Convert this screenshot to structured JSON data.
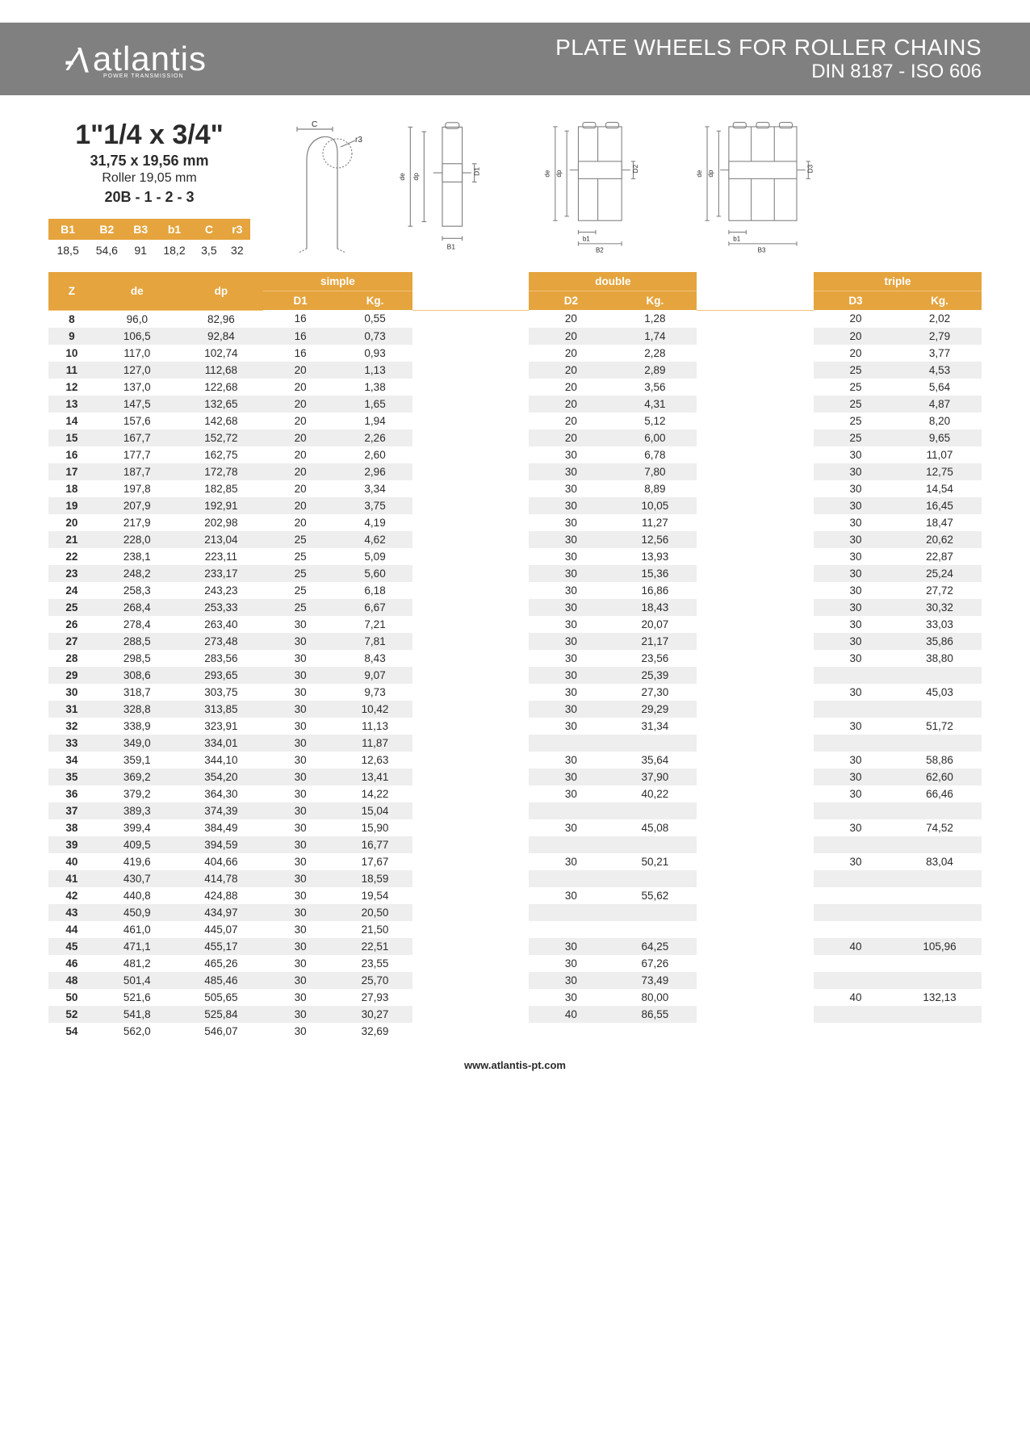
{
  "brand": {
    "name": "atlantis",
    "tagline": "POWER TRANSMISSION"
  },
  "header": {
    "title1": "PLATE WHEELS FOR ROLLER CHAINS",
    "title2": "DIN 8187 - ISO 606"
  },
  "spec": {
    "main": "1\"1/4 x 3/4\"",
    "mm": "31,75 x 19,56 mm",
    "roller": "Roller 19,05 mm",
    "series": "20B - 1 - 2 - 3"
  },
  "smallTable": {
    "headers": [
      "B1",
      "B2",
      "B3",
      "b1",
      "C",
      "r3"
    ],
    "values": [
      "18,5",
      "54,6",
      "91",
      "18,2",
      "3,5",
      "32"
    ]
  },
  "mainTable": {
    "groupLabels": {
      "simple": "simple",
      "double": "double",
      "triple": "triple"
    },
    "subHeaders": {
      "Z": "Z",
      "de": "de",
      "dp": "dp",
      "D1": "D1",
      "D2": "D2",
      "D3": "D3",
      "Kg": "Kg."
    },
    "rows": [
      {
        "Z": "8",
        "de": "96,0",
        "dp": "82,96",
        "D1": "16",
        "K1": "0,55",
        "D2": "20",
        "K2": "1,28",
        "D3": "20",
        "K3": "2,02"
      },
      {
        "Z": "9",
        "de": "106,5",
        "dp": "92,84",
        "D1": "16",
        "K1": "0,73",
        "D2": "20",
        "K2": "1,74",
        "D3": "20",
        "K3": "2,79"
      },
      {
        "Z": "10",
        "de": "117,0",
        "dp": "102,74",
        "D1": "16",
        "K1": "0,93",
        "D2": "20",
        "K2": "2,28",
        "D3": "20",
        "K3": "3,77"
      },
      {
        "Z": "11",
        "de": "127,0",
        "dp": "112,68",
        "D1": "20",
        "K1": "1,13",
        "D2": "20",
        "K2": "2,89",
        "D3": "25",
        "K3": "4,53"
      },
      {
        "Z": "12",
        "de": "137,0",
        "dp": "122,68",
        "D1": "20",
        "K1": "1,38",
        "D2": "20",
        "K2": "3,56",
        "D3": "25",
        "K3": "5,64"
      },
      {
        "Z": "13",
        "de": "147,5",
        "dp": "132,65",
        "D1": "20",
        "K1": "1,65",
        "D2": "20",
        "K2": "4,31",
        "D3": "25",
        "K3": "4,87"
      },
      {
        "Z": "14",
        "de": "157,6",
        "dp": "142,68",
        "D1": "20",
        "K1": "1,94",
        "D2": "20",
        "K2": "5,12",
        "D3": "25",
        "K3": "8,20"
      },
      {
        "Z": "15",
        "de": "167,7",
        "dp": "152,72",
        "D1": "20",
        "K1": "2,26",
        "D2": "20",
        "K2": "6,00",
        "D3": "25",
        "K3": "9,65"
      },
      {
        "Z": "16",
        "de": "177,7",
        "dp": "162,75",
        "D1": "20",
        "K1": "2,60",
        "D2": "30",
        "K2": "6,78",
        "D3": "30",
        "K3": "11,07"
      },
      {
        "Z": "17",
        "de": "187,7",
        "dp": "172,78",
        "D1": "20",
        "K1": "2,96",
        "D2": "30",
        "K2": "7,80",
        "D3": "30",
        "K3": "12,75"
      },
      {
        "Z": "18",
        "de": "197,8",
        "dp": "182,85",
        "D1": "20",
        "K1": "3,34",
        "D2": "30",
        "K2": "8,89",
        "D3": "30",
        "K3": "14,54"
      },
      {
        "Z": "19",
        "de": "207,9",
        "dp": "192,91",
        "D1": "20",
        "K1": "3,75",
        "D2": "30",
        "K2": "10,05",
        "D3": "30",
        "K3": "16,45"
      },
      {
        "Z": "20",
        "de": "217,9",
        "dp": "202,98",
        "D1": "20",
        "K1": "4,19",
        "D2": "30",
        "K2": "11,27",
        "D3": "30",
        "K3": "18,47"
      },
      {
        "Z": "21",
        "de": "228,0",
        "dp": "213,04",
        "D1": "25",
        "K1": "4,62",
        "D2": "30",
        "K2": "12,56",
        "D3": "30",
        "K3": "20,62"
      },
      {
        "Z": "22",
        "de": "238,1",
        "dp": "223,11",
        "D1": "25",
        "K1": "5,09",
        "D2": "30",
        "K2": "13,93",
        "D3": "30",
        "K3": "22,87"
      },
      {
        "Z": "23",
        "de": "248,2",
        "dp": "233,17",
        "D1": "25",
        "K1": "5,60",
        "D2": "30",
        "K2": "15,36",
        "D3": "30",
        "K3": "25,24"
      },
      {
        "Z": "24",
        "de": "258,3",
        "dp": "243,23",
        "D1": "25",
        "K1": "6,18",
        "D2": "30",
        "K2": "16,86",
        "D3": "30",
        "K3": "27,72"
      },
      {
        "Z": "25",
        "de": "268,4",
        "dp": "253,33",
        "D1": "25",
        "K1": "6,67",
        "D2": "30",
        "K2": "18,43",
        "D3": "30",
        "K3": "30,32"
      },
      {
        "Z": "26",
        "de": "278,4",
        "dp": "263,40",
        "D1": "30",
        "K1": "7,21",
        "D2": "30",
        "K2": "20,07",
        "D3": "30",
        "K3": "33,03"
      },
      {
        "Z": "27",
        "de": "288,5",
        "dp": "273,48",
        "D1": "30",
        "K1": "7,81",
        "D2": "30",
        "K2": "21,17",
        "D3": "30",
        "K3": "35,86"
      },
      {
        "Z": "28",
        "de": "298,5",
        "dp": "283,56",
        "D1": "30",
        "K1": "8,43",
        "D2": "30",
        "K2": "23,56",
        "D3": "30",
        "K3": "38,80"
      },
      {
        "Z": "29",
        "de": "308,6",
        "dp": "293,65",
        "D1": "30",
        "K1": "9,07",
        "D2": "30",
        "K2": "25,39",
        "D3": "",
        "K3": ""
      },
      {
        "Z": "30",
        "de": "318,7",
        "dp": "303,75",
        "D1": "30",
        "K1": "9,73",
        "D2": "30",
        "K2": "27,30",
        "D3": "30",
        "K3": "45,03"
      },
      {
        "Z": "31",
        "de": "328,8",
        "dp": "313,85",
        "D1": "30",
        "K1": "10,42",
        "D2": "30",
        "K2": "29,29",
        "D3": "",
        "K3": ""
      },
      {
        "Z": "32",
        "de": "338,9",
        "dp": "323,91",
        "D1": "30",
        "K1": "11,13",
        "D2": "30",
        "K2": "31,34",
        "D3": "30",
        "K3": "51,72"
      },
      {
        "Z": "33",
        "de": "349,0",
        "dp": "334,01",
        "D1": "30",
        "K1": "11,87",
        "D2": "",
        "K2": "",
        "D3": "",
        "K3": ""
      },
      {
        "Z": "34",
        "de": "359,1",
        "dp": "344,10",
        "D1": "30",
        "K1": "12,63",
        "D2": "30",
        "K2": "35,64",
        "D3": "30",
        "K3": "58,86"
      },
      {
        "Z": "35",
        "de": "369,2",
        "dp": "354,20",
        "D1": "30",
        "K1": "13,41",
        "D2": "30",
        "K2": "37,90",
        "D3": "30",
        "K3": "62,60"
      },
      {
        "Z": "36",
        "de": "379,2",
        "dp": "364,30",
        "D1": "30",
        "K1": "14,22",
        "D2": "30",
        "K2": "40,22",
        "D3": "30",
        "K3": "66,46"
      },
      {
        "Z": "37",
        "de": "389,3",
        "dp": "374,39",
        "D1": "30",
        "K1": "15,04",
        "D2": "",
        "K2": "",
        "D3": "",
        "K3": ""
      },
      {
        "Z": "38",
        "de": "399,4",
        "dp": "384,49",
        "D1": "30",
        "K1": "15,90",
        "D2": "30",
        "K2": "45,08",
        "D3": "30",
        "K3": "74,52"
      },
      {
        "Z": "39",
        "de": "409,5",
        "dp": "394,59",
        "D1": "30",
        "K1": "16,77",
        "D2": "",
        "K2": "",
        "D3": "",
        "K3": ""
      },
      {
        "Z": "40",
        "de": "419,6",
        "dp": "404,66",
        "D1": "30",
        "K1": "17,67",
        "D2": "30",
        "K2": "50,21",
        "D3": "30",
        "K3": "83,04"
      },
      {
        "Z": "41",
        "de": "430,7",
        "dp": "414,78",
        "D1": "30",
        "K1": "18,59",
        "D2": "",
        "K2": "",
        "D3": "",
        "K3": ""
      },
      {
        "Z": "42",
        "de": "440,8",
        "dp": "424,88",
        "D1": "30",
        "K1": "19,54",
        "D2": "30",
        "K2": "55,62",
        "D3": "",
        "K3": ""
      },
      {
        "Z": "43",
        "de": "450,9",
        "dp": "434,97",
        "D1": "30",
        "K1": "20,50",
        "D2": "",
        "K2": "",
        "D3": "",
        "K3": ""
      },
      {
        "Z": "44",
        "de": "461,0",
        "dp": "445,07",
        "D1": "30",
        "K1": "21,50",
        "D2": "",
        "K2": "",
        "D3": "",
        "K3": ""
      },
      {
        "Z": "45",
        "de": "471,1",
        "dp": "455,17",
        "D1": "30",
        "K1": "22,51",
        "D2": "30",
        "K2": "64,25",
        "D3": "40",
        "K3": "105,96"
      },
      {
        "Z": "46",
        "de": "481,2",
        "dp": "465,26",
        "D1": "30",
        "K1": "23,55",
        "D2": "30",
        "K2": "67,26",
        "D3": "",
        "K3": ""
      },
      {
        "Z": "48",
        "de": "501,4",
        "dp": "485,46",
        "D1": "30",
        "K1": "25,70",
        "D2": "30",
        "K2": "73,49",
        "D3": "",
        "K3": ""
      },
      {
        "Z": "50",
        "de": "521,6",
        "dp": "505,65",
        "D1": "30",
        "K1": "27,93",
        "D2": "30",
        "K2": "80,00",
        "D3": "40",
        "K3": "132,13"
      },
      {
        "Z": "52",
        "de": "541,8",
        "dp": "525,84",
        "D1": "30",
        "K1": "30,27",
        "D2": "40",
        "K2": "86,55",
        "D3": "",
        "K3": ""
      },
      {
        "Z": "54",
        "de": "562,0",
        "dp": "546,07",
        "D1": "30",
        "K1": "32,69",
        "D2": "",
        "K2": "",
        "D3": "",
        "K3": ""
      }
    ]
  },
  "diagramLabels": {
    "C": "C",
    "r3": "r3",
    "de": "de",
    "dp": "dp",
    "D1": "D1",
    "D2": "D2",
    "D3": "D3",
    "B1": "B1",
    "B2": "B2",
    "B3": "B3",
    "b1": "b1"
  },
  "footer": {
    "url": "www.atlantis-pt.com"
  },
  "colors": {
    "headerBg": "#808080",
    "accent": "#e5a43d",
    "rowAlt": "#eeeeee",
    "diagramStroke": "#808080",
    "text": "#2b2b2b",
    "white": "#ffffff"
  }
}
